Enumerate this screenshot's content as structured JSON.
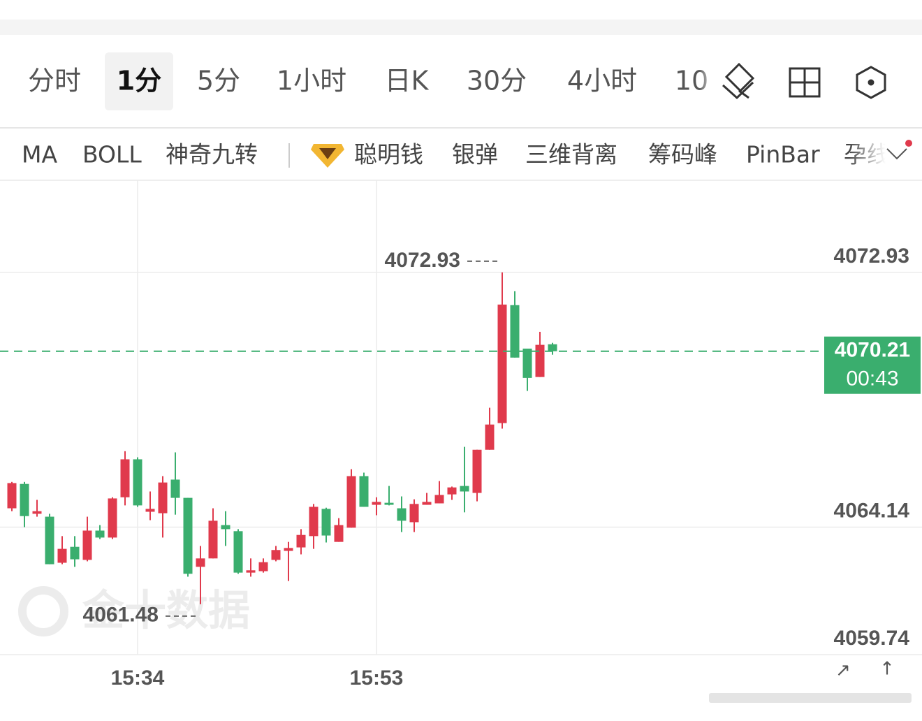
{
  "tabs": [
    "分时",
    "1分",
    "5分",
    "1小时",
    "日K",
    "30分",
    "4小时",
    "10"
  ],
  "active_tab": 1,
  "indicators": [
    "MA",
    "BOLL",
    "神奇九转",
    "聪明钱",
    "银弹",
    "三维背离",
    "筹码峰",
    "PinBar",
    "孕线"
  ],
  "watermark": "金十数据",
  "chart_data": {
    "type": "candlestick",
    "categories": [
      null,
      null,
      null,
      null,
      null,
      null,
      null,
      null,
      null,
      null,
      "15:34",
      null,
      null,
      null,
      null,
      null,
      null,
      null,
      null,
      null,
      null,
      null,
      null,
      null,
      null,
      null,
      null,
      null,
      null,
      "15:53",
      null,
      null,
      null,
      null,
      null,
      null,
      null,
      null,
      null,
      null,
      null,
      null,
      null,
      null
    ],
    "open": [
      4064.79,
      4065.63,
      4064.6,
      4064.5,
      4062.91,
      4063.46,
      4063.01,
      4064.02,
      4063.78,
      4065.17,
      4066.48,
      4064.67,
      4064.62,
      4065.78,
      4065.15,
      4062.77,
      4063.06,
      4064.21,
      4064.0,
      4062.57,
      4062.62,
      4063.01,
      4063.32,
      4063.44,
      4063.83,
      4064.77,
      4063.63,
      4064.12,
      4065.9,
      4064.91,
      4064.98,
      4064.79,
      4064.31,
      4064.91,
      4064.96,
      4065.27,
      4065.56,
      4065.32,
      4066.81,
      4067.73,
      4071.8,
      4070.3,
      4069.32,
      4070.45
    ],
    "high": [
      4065.7,
      4065.7,
      4065.08,
      4064.6,
      4063.83,
      4063.83,
      4064.5,
      4064.21,
      4065.17,
      4066.76,
      4066.55,
      4065.37,
      4065.9,
      4066.72,
      4065.15,
      4063.49,
      4064.79,
      4064.69,
      4064.07,
      4063.06,
      4063.06,
      4063.49,
      4063.63,
      4064.07,
      4064.94,
      4064.81,
      4064.45,
      4066.14,
      4066.02,
      4065.17,
      4065.56,
      4065.2,
      4065.1,
      4065.32,
      4065.73,
      4065.54,
      4066.91,
      4066.81,
      4068.26,
      4072.93,
      4072.28,
      4070.3,
      4070.88,
      4070.5
    ],
    "low": [
      4064.69,
      4064.14,
      4064.5,
      4062.86,
      4062.86,
      4062.77,
      4062.96,
      4063.73,
      4063.73,
      4064.89,
      4064.84,
      4064.38,
      4063.78,
      4064.57,
      4062.43,
      4061.48,
      4063.06,
      4063.49,
      4062.53,
      4062.43,
      4062.57,
      4062.96,
      4062.28,
      4063.2,
      4063.39,
      4063.61,
      4063.63,
      4064.12,
      4064.84,
      4064.55,
      4064.89,
      4063.97,
      4063.97,
      4064.91,
      4064.96,
      4065.08,
      4064.65,
      4065.03,
      4066.81,
      4067.54,
      4069.99,
      4068.84,
      4069.32,
      4070.09
    ],
    "close": [
      4065.66,
      4064.52,
      4064.69,
      4062.86,
      4063.39,
      4063.03,
      4064.02,
      4063.78,
      4065.13,
      4066.48,
      4064.89,
      4064.77,
      4065.68,
      4065.15,
      4062.53,
      4063.06,
      4064.36,
      4064.07,
      4062.57,
      4062.65,
      4062.93,
      4063.35,
      4063.42,
      4063.87,
      4064.84,
      4063.85,
      4064.21,
      4065.9,
      4064.84,
      4065.01,
      4064.91,
      4064.36,
      4064.94,
      4065.01,
      4065.25,
      4065.51,
      4065.37,
      4066.81,
      4067.68,
      4071.82,
      4069.99,
      4069.29,
      4070.43,
      4070.21
    ],
    "up_color": "#e03a4c",
    "down_color": "#3aae6e",
    "ylim": [
      4059.74,
      4076.11
    ],
    "yticks": [
      4072.93,
      4064.14,
      4059.74
    ],
    "grid": true,
    "last_price": 4070.21,
    "countdown": "00:43",
    "high_annotation": "4072.93",
    "low_annotation": "4061.48"
  }
}
